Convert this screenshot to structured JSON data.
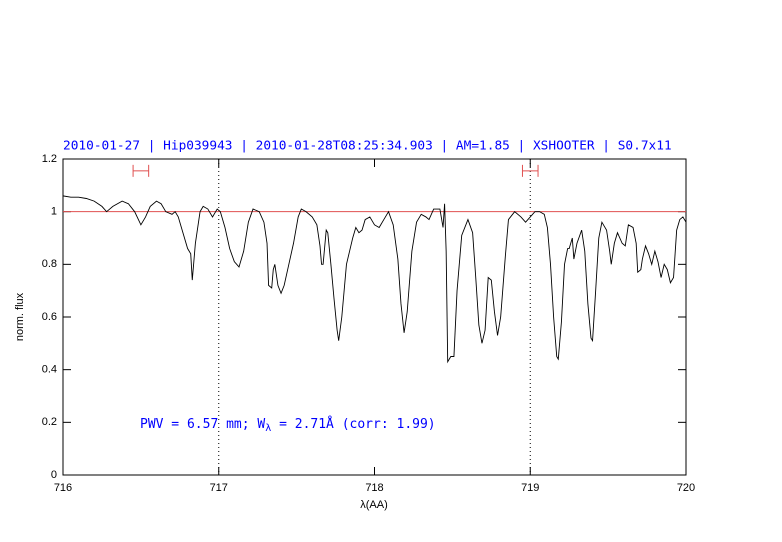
{
  "chart_data": {
    "type": "line",
    "title": "2010-01-27 | Hip039943 | 2010-01-28T08:25:34.903 | AM=1.85 | XSHOOTER | S0.7x11",
    "x_label": "λ(AA)",
    "y_label": "norm. flux",
    "annotation": {
      "main": "PWV = 6.57 mm; W",
      "sub": "λ",
      "rest": " = 2.71Å (corr: 1.99)"
    },
    "xlim": [
      716,
      720
    ],
    "ylim": [
      0,
      1.2
    ],
    "xticks": [
      716,
      717,
      718,
      719,
      720
    ],
    "yticks": [
      0,
      0.2,
      0.4,
      0.6,
      0.8,
      1,
      1.2
    ],
    "continuum": {
      "value": 1,
      "color": "#e05050"
    },
    "vlines": [
      717,
      719
    ],
    "ranges": [
      {
        "x": [
          716.45,
          716.55
        ],
        "y": 1.155
      },
      {
        "x": [
          718.95,
          719.05
        ],
        "y": 1.155
      }
    ],
    "range_color": "#e05050",
    "series": [
      {
        "color": "#000000",
        "x": [
          716.0,
          716.05,
          716.1,
          716.15,
          716.2,
          716.25,
          716.28,
          716.32,
          716.38,
          716.42,
          716.46,
          716.5,
          716.53,
          716.56,
          716.6,
          716.63,
          716.66,
          716.7,
          716.72,
          716.74,
          716.77,
          716.8,
          716.82,
          716.83,
          716.85,
          716.88,
          716.9,
          716.93,
          716.96,
          716.99,
          717.01,
          717.04,
          717.07,
          717.1,
          717.13,
          717.16,
          717.19,
          717.22,
          717.26,
          717.29,
          717.31,
          717.32,
          717.34,
          717.35,
          717.36,
          717.38,
          717.4,
          717.42,
          717.45,
          717.48,
          717.51,
          717.53,
          717.56,
          717.6,
          717.63,
          717.65,
          717.66,
          717.67,
          717.69,
          717.7,
          717.72,
          717.74,
          717.76,
          717.77,
          717.79,
          717.82,
          717.84,
          717.86,
          717.88,
          717.9,
          717.92,
          717.94,
          717.97,
          718.0,
          718.03,
          718.06,
          718.09,
          718.12,
          718.15,
          718.17,
          718.19,
          718.21,
          718.24,
          718.27,
          718.3,
          718.33,
          718.35,
          718.38,
          718.42,
          718.44,
          718.45,
          718.46,
          718.47,
          718.49,
          718.51,
          718.53,
          718.56,
          718.6,
          718.63,
          718.65,
          718.67,
          718.69,
          718.71,
          718.73,
          718.75,
          718.77,
          718.79,
          718.81,
          718.84,
          718.86,
          718.9,
          718.94,
          718.97,
          719.0,
          719.03,
          719.06,
          719.09,
          719.11,
          719.13,
          719.15,
          719.17,
          719.18,
          719.2,
          719.22,
          719.24,
          719.25,
          719.27,
          719.28,
          719.3,
          719.33,
          719.35,
          719.37,
          719.39,
          719.4,
          719.42,
          719.44,
          719.46,
          719.49,
          719.51,
          719.52,
          719.54,
          719.56,
          719.59,
          719.61,
          719.63,
          719.66,
          719.68,
          719.69,
          719.71,
          719.72,
          719.74,
          719.76,
          719.78,
          719.8,
          719.82,
          719.84,
          719.86,
          719.88,
          719.9,
          719.92,
          719.94,
          719.96,
          719.98,
          720.0
        ],
        "values": [
          1.06,
          1.055,
          1.055,
          1.05,
          1.04,
          1.02,
          1.0,
          1.02,
          1.04,
          1.03,
          1.0,
          0.95,
          0.98,
          1.02,
          1.04,
          1.03,
          1.0,
          0.99,
          1.0,
          0.98,
          0.92,
          0.86,
          0.84,
          0.74,
          0.88,
          1.0,
          1.02,
          1.01,
          0.98,
          1.01,
          1.0,
          0.94,
          0.86,
          0.81,
          0.79,
          0.85,
          0.96,
          1.01,
          1.0,
          0.96,
          0.88,
          0.72,
          0.71,
          0.78,
          0.8,
          0.72,
          0.69,
          0.72,
          0.8,
          0.88,
          0.98,
          1.01,
          1.0,
          0.98,
          0.95,
          0.87,
          0.8,
          0.8,
          0.93,
          0.92,
          0.8,
          0.67,
          0.55,
          0.51,
          0.6,
          0.8,
          0.85,
          0.9,
          0.94,
          0.92,
          0.93,
          0.97,
          0.98,
          0.95,
          0.94,
          0.97,
          1.0,
          0.95,
          0.82,
          0.65,
          0.54,
          0.62,
          0.85,
          0.96,
          0.99,
          0.98,
          0.97,
          1.01,
          1.01,
          0.94,
          1.03,
          0.85,
          0.43,
          0.45,
          0.45,
          0.7,
          0.91,
          0.97,
          0.92,
          0.75,
          0.57,
          0.5,
          0.55,
          0.75,
          0.74,
          0.62,
          0.53,
          0.6,
          0.83,
          0.97,
          1.0,
          0.98,
          0.96,
          0.98,
          1.0,
          1.0,
          0.99,
          0.94,
          0.8,
          0.6,
          0.45,
          0.44,
          0.58,
          0.8,
          0.86,
          0.86,
          0.9,
          0.82,
          0.88,
          0.93,
          0.85,
          0.65,
          0.52,
          0.51,
          0.7,
          0.9,
          0.96,
          0.93,
          0.85,
          0.8,
          0.88,
          0.92,
          0.88,
          0.87,
          0.95,
          0.94,
          0.88,
          0.77,
          0.78,
          0.82,
          0.87,
          0.84,
          0.8,
          0.85,
          0.81,
          0.75,
          0.8,
          0.78,
          0.73,
          0.75,
          0.93,
          0.97,
          0.98,
          0.96
        ]
      }
    ]
  }
}
